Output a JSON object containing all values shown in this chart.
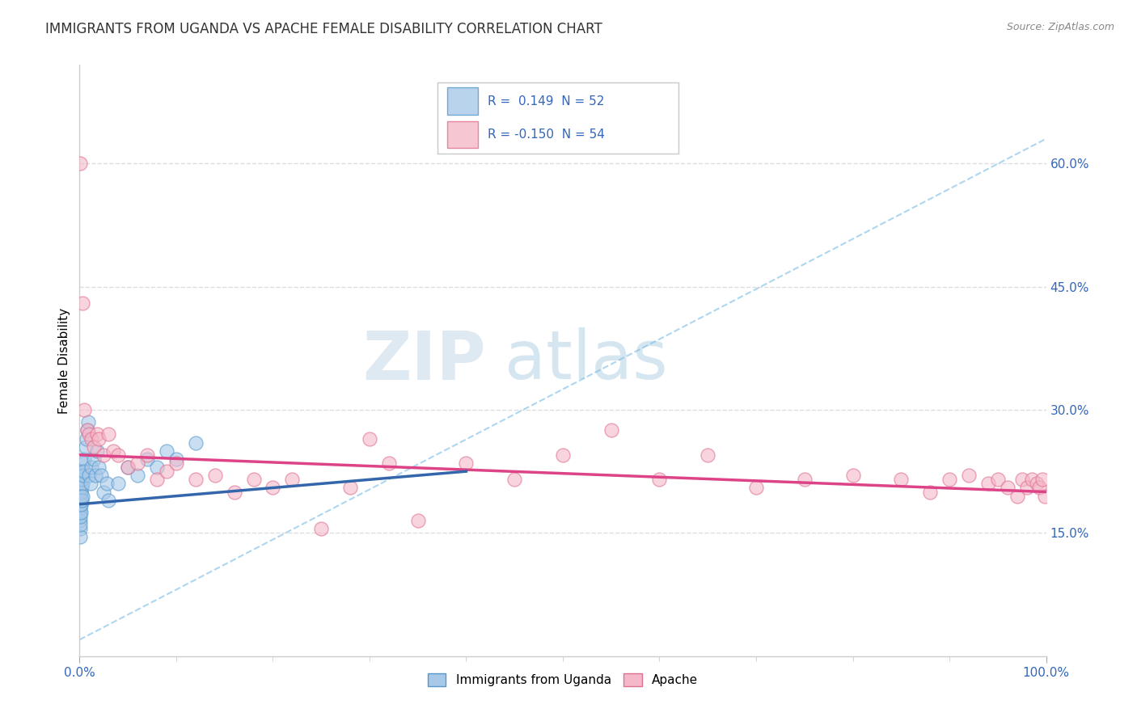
{
  "title": "IMMIGRANTS FROM UGANDA VS APACHE FEMALE DISABILITY CORRELATION CHART",
  "source": "Source: ZipAtlas.com",
  "ylabel": "Female Disability",
  "watermark_zip": "ZIP",
  "watermark_atlas": "atlas",
  "xlim": [
    0.0,
    1.0
  ],
  "ylim": [
    0.0,
    0.72
  ],
  "yticks": [
    0.15,
    0.3,
    0.45,
    0.6
  ],
  "ytick_labels": [
    "15.0%",
    "30.0%",
    "45.0%",
    "60.0%"
  ],
  "xtick_labels": [
    "0.0%",
    "100.0%"
  ],
  "blue_color": "#a8c8e8",
  "blue_edge_color": "#5599cc",
  "pink_color": "#f4b8c8",
  "pink_edge_color": "#e07090",
  "blue_line_color": "#3366aa",
  "pink_line_color": "#dd4488",
  "dash_line_color": "#99ccee",
  "blue_scatter_x": [
    0.0005,
    0.0005,
    0.0005,
    0.0005,
    0.0006,
    0.0006,
    0.0007,
    0.0008,
    0.0009,
    0.001,
    0.001,
    0.001,
    0.001,
    0.0012,
    0.0013,
    0.0014,
    0.0015,
    0.0015,
    0.002,
    0.002,
    0.002,
    0.0025,
    0.003,
    0.003,
    0.003,
    0.004,
    0.004,
    0.005,
    0.005,
    0.006,
    0.007,
    0.008,
    0.009,
    0.01,
    0.011,
    0.012,
    0.015,
    0.016,
    0.018,
    0.02,
    0.022,
    0.025,
    0.028,
    0.03,
    0.04,
    0.05,
    0.06,
    0.07,
    0.08,
    0.09,
    0.1,
    0.12
  ],
  "blue_scatter_y": [
    0.18,
    0.165,
    0.155,
    0.145,
    0.175,
    0.16,
    0.185,
    0.195,
    0.17,
    0.21,
    0.2,
    0.185,
    0.175,
    0.195,
    0.19,
    0.185,
    0.2,
    0.215,
    0.22,
    0.205,
    0.19,
    0.215,
    0.225,
    0.21,
    0.195,
    0.235,
    0.22,
    0.24,
    0.225,
    0.255,
    0.265,
    0.275,
    0.285,
    0.22,
    0.21,
    0.23,
    0.24,
    0.22,
    0.25,
    0.23,
    0.22,
    0.2,
    0.21,
    0.19,
    0.21,
    0.23,
    0.22,
    0.24,
    0.23,
    0.25,
    0.24,
    0.26
  ],
  "pink_scatter_x": [
    0.0008,
    0.003,
    0.005,
    0.008,
    0.01,
    0.012,
    0.015,
    0.018,
    0.02,
    0.025,
    0.03,
    0.035,
    0.04,
    0.05,
    0.06,
    0.07,
    0.08,
    0.09,
    0.1,
    0.12,
    0.14,
    0.16,
    0.18,
    0.2,
    0.22,
    0.25,
    0.28,
    0.3,
    0.32,
    0.35,
    0.4,
    0.45,
    0.5,
    0.55,
    0.6,
    0.65,
    0.7,
    0.75,
    0.8,
    0.85,
    0.88,
    0.9,
    0.92,
    0.94,
    0.95,
    0.96,
    0.97,
    0.975,
    0.98,
    0.985,
    0.99,
    0.993,
    0.996,
    0.999
  ],
  "pink_scatter_y": [
    0.6,
    0.43,
    0.3,
    0.275,
    0.27,
    0.265,
    0.255,
    0.27,
    0.265,
    0.245,
    0.27,
    0.25,
    0.245,
    0.23,
    0.235,
    0.245,
    0.215,
    0.225,
    0.235,
    0.215,
    0.22,
    0.2,
    0.215,
    0.205,
    0.215,
    0.155,
    0.205,
    0.265,
    0.235,
    0.165,
    0.235,
    0.215,
    0.245,
    0.275,
    0.215,
    0.245,
    0.205,
    0.215,
    0.22,
    0.215,
    0.2,
    0.215,
    0.22,
    0.21,
    0.215,
    0.205,
    0.195,
    0.215,
    0.205,
    0.215,
    0.21,
    0.205,
    0.215,
    0.195
  ],
  "blue_trend_x": [
    0.0,
    0.4
  ],
  "blue_trend_y": [
    0.185,
    0.225
  ],
  "pink_trend_x": [
    0.0,
    1.0
  ],
  "pink_trend_y": [
    0.245,
    0.2
  ],
  "dash_trend_x": [
    0.0,
    1.0
  ],
  "dash_trend_y": [
    0.02,
    0.63
  ],
  "background_color": "#ffffff",
  "grid_color": "#dddddd",
  "title_fontsize": 12,
  "tick_fontsize": 11,
  "tick_color": "#3366bb"
}
